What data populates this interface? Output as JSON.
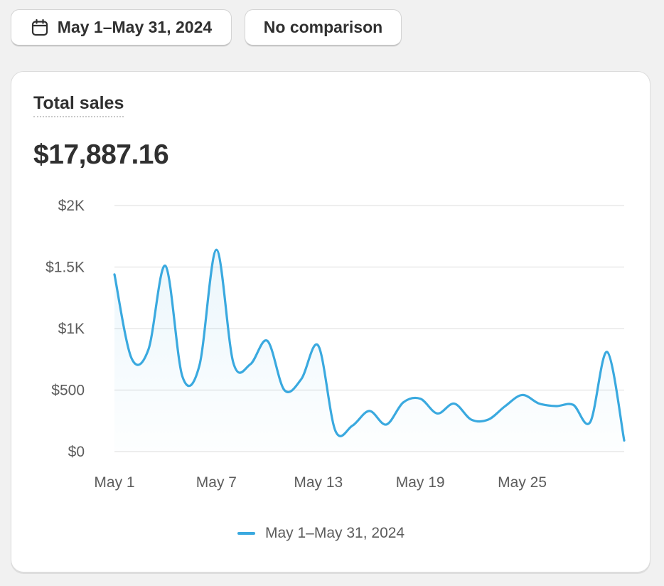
{
  "toolbar": {
    "date_label": "May 1–May 31, 2024",
    "date_icon": "calendar-icon",
    "comparison_label": "No comparison"
  },
  "card": {
    "metric_label": "Total sales",
    "metric_value": "$17,887.16"
  },
  "colors": {
    "line": "#3aa9df",
    "grid": "#e3e3e3",
    "text": "#303030",
    "muted": "#5c5c5c",
    "background": "#f1f1f1"
  },
  "chart_data": {
    "type": "line",
    "title": "",
    "xlabel": "",
    "ylabel": "",
    "ylim": [
      0,
      2000
    ],
    "y_ticks": [
      0,
      500,
      1000,
      1500,
      2000
    ],
    "y_tick_labels": [
      "$0",
      "$500",
      "$1K",
      "$1.5K",
      "$2K"
    ],
    "x_tick_labels": [
      "May 1",
      "May 7",
      "May 13",
      "May 19",
      "May 25"
    ],
    "x_tick_days": [
      1,
      7,
      13,
      19,
      25
    ],
    "grid": true,
    "legend_position": "bottom-center",
    "series": [
      {
        "name": "May 1–May 31, 2024",
        "x": [
          1,
          2,
          3,
          4,
          5,
          6,
          7,
          8,
          9,
          10,
          11,
          12,
          13,
          14,
          15,
          16,
          17,
          18,
          19,
          20,
          21,
          22,
          23,
          24,
          25,
          26,
          27,
          28,
          29,
          30,
          31
        ],
        "values": [
          1440,
          760,
          830,
          1510,
          610,
          700,
          1640,
          720,
          710,
          900,
          500,
          590,
          860,
          170,
          210,
          330,
          220,
          400,
          430,
          310,
          390,
          260,
          260,
          370,
          460,
          390,
          370,
          380,
          240,
          810,
          90
        ]
      }
    ]
  }
}
